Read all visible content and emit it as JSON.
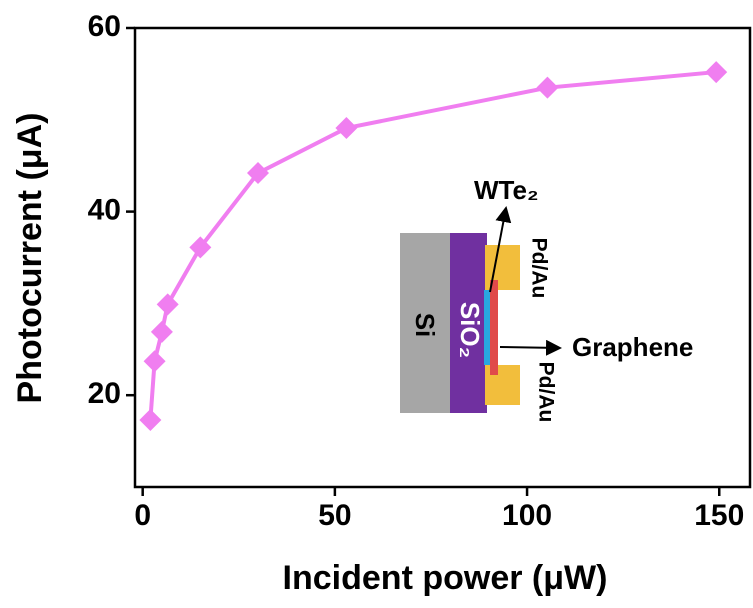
{
  "chart_data": {
    "type": "line",
    "x_label": "Incident power (μW)",
    "y_label": "Photocurrent (μA)",
    "x": [
      2,
      3.1,
      5,
      6.5,
      15,
      30,
      53,
      105.3,
      149.2
    ],
    "values": [
      17.3,
      23.7,
      26.9,
      29.9,
      36.1,
      44.2,
      49.1,
      53.5,
      55.2
    ],
    "color": "#f07ef0",
    "xlim": [
      -2,
      158
    ],
    "xticks": [
      0,
      50,
      100,
      150
    ],
    "ylim": [
      10,
      60
    ],
    "yticks": [
      20,
      40,
      60
    ],
    "inset_labels": {
      "wte2": "WTe₂",
      "pd_au_top": "Pd/Au",
      "pd_au_bottom": "Pd/Au",
      "si": "Si",
      "sio2": "SiO₂",
      "graphene": "Graphene"
    }
  }
}
